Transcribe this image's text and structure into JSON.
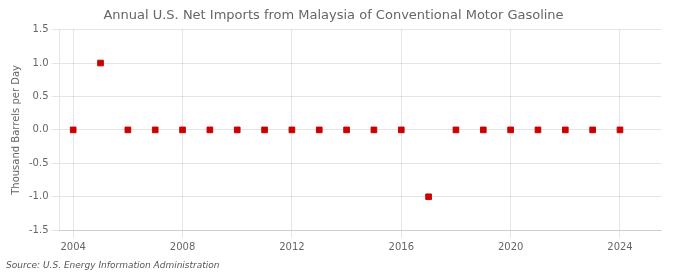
{
  "chart_data": {
    "type": "scatter",
    "title": "Annual U.S. Net Imports from Malaysia of Conventional Motor Gasoline",
    "ylabel": "Thousand Barrels per Day",
    "annotations": [
      "Source: U.S. Energy Information Administration"
    ],
    "x": [
      2004,
      2005,
      2006,
      2007,
      2008,
      2009,
      2010,
      2011,
      2012,
      2013,
      2014,
      2015,
      2016,
      2017,
      2018,
      2019,
      2020,
      2021,
      2022,
      2023,
      2024
    ],
    "values": [
      0,
      1.0,
      0,
      0,
      0,
      0,
      0,
      0,
      0,
      0,
      0,
      0,
      0,
      -1.0,
      0,
      0,
      0,
      0,
      0,
      0,
      0
    ],
    "color": "#cc0000",
    "marker": "square",
    "xlim": [
      2003.5,
      2025.5
    ],
    "xticks": [
      2004,
      2008,
      2012,
      2016,
      2020,
      2024
    ],
    "ylim": [
      -1.5,
      1.5
    ],
    "yticks": [
      -1.5,
      {
        "value": -1.0,
        "label": "-1.0"
      },
      -0.5,
      {
        "value": 0.0,
        "label": "0.0"
      },
      0.5,
      {
        "value": 1.0,
        "label": "1.0"
      },
      1.5
    ],
    "grid": true
  }
}
